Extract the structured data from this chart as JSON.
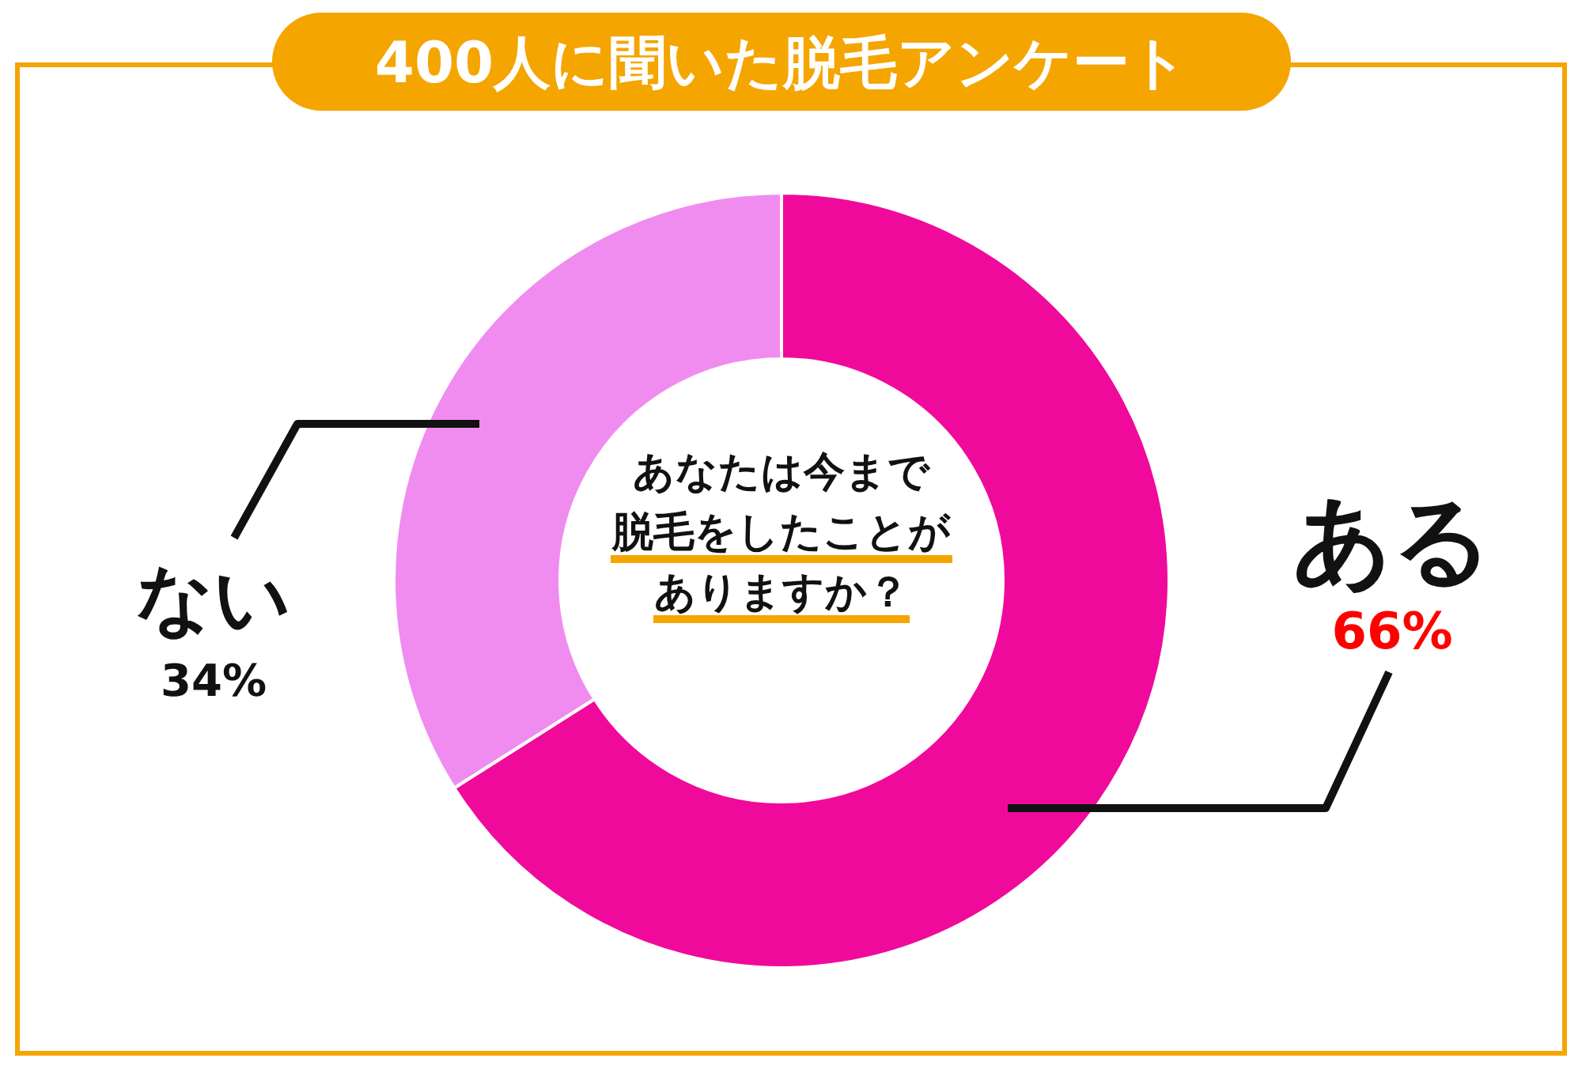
{
  "chart_data": {
    "type": "donut",
    "title": "400人に聞いた脱毛アンケート",
    "categories": [
      "ある",
      "ない"
    ],
    "values": [
      66,
      34
    ],
    "colors": [
      "#f00a9b",
      "#f08cef"
    ],
    "value_labels": [
      "66%",
      "34%"
    ],
    "annotations": [
      "あなたは今まで",
      "脱毛をしたことが",
      "ありますか？"
    ]
  }
}
